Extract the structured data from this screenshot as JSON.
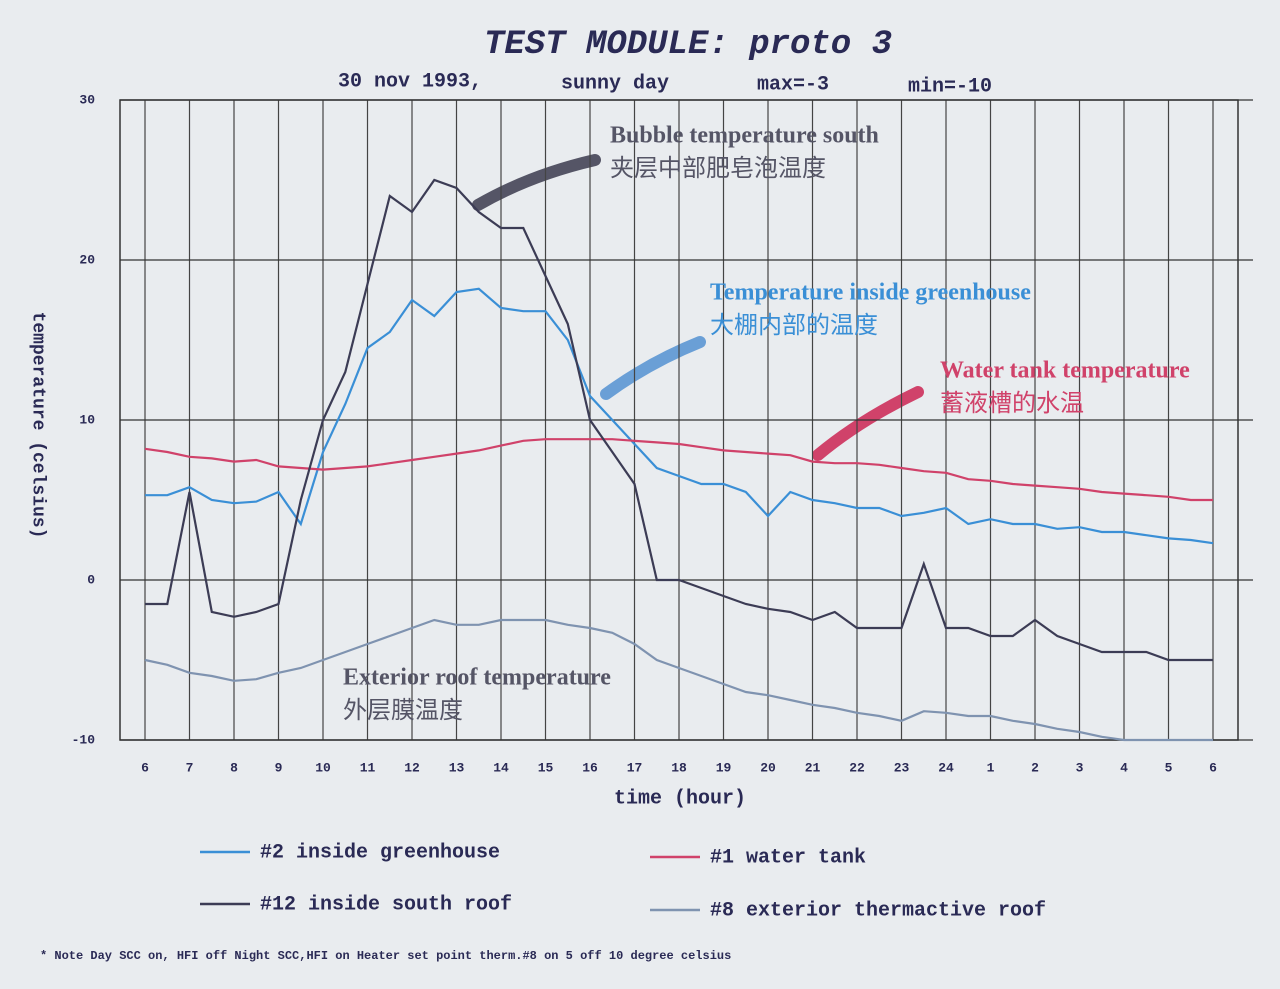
{
  "chart_data": {
    "type": "line",
    "title": "TEST MODULE: proto 3",
    "subtitle": [
      "30 nov 1993,",
      "sunny day",
      "max=-3",
      "min=-10"
    ],
    "y_label": "temperature (celsius)",
    "x_label": "time (hour)",
    "categories": [
      "6",
      null,
      "7",
      null,
      "8",
      null,
      "9",
      null,
      "10",
      null,
      "11",
      null,
      "12",
      null,
      "13",
      null,
      "14",
      null,
      "15",
      null,
      "16",
      null,
      "17",
      null,
      "18",
      null,
      "19",
      null,
      "20",
      null,
      "21",
      null,
      "22",
      null,
      "23",
      null,
      "24",
      null,
      "1",
      null,
      "2",
      null,
      "3",
      null,
      "4",
      null,
      "5",
      null,
      "6"
    ],
    "ylim": [
      -10,
      30
    ],
    "yticks": [
      -10,
      0,
      10,
      20,
      30
    ],
    "grid": true,
    "series": [
      {
        "name": "#2 inside greenhouse",
        "color": "#3a8fd6",
        "values": [
          5.3,
          5.3,
          5.8,
          5,
          4.8,
          4.9,
          5.5,
          3.5,
          8,
          11,
          14.5,
          15.5,
          17.5,
          16.5,
          18,
          18.2,
          17,
          16.8,
          16.8,
          15,
          11.5,
          10,
          8.5,
          7,
          6.5,
          6,
          6,
          5.5,
          4,
          5.5,
          5,
          4.8,
          4.5,
          4.5,
          4,
          4.2,
          4.5,
          3.5,
          3.8,
          3.5,
          3.5,
          3.2,
          3.3,
          3,
          3,
          2.8,
          2.6,
          2.5,
          2.3
        ]
      },
      {
        "name": "#1 water tank",
        "color": "#d0426a",
        "values": [
          8.2,
          8,
          7.7,
          7.6,
          7.4,
          7.5,
          7.1,
          7,
          6.9,
          7,
          7.1,
          7.3,
          7.5,
          7.7,
          7.9,
          8.1,
          8.4,
          8.7,
          8.8,
          8.8,
          8.8,
          8.8,
          8.7,
          8.6,
          8.5,
          8.3,
          8.1,
          8,
          7.9,
          7.8,
          7.4,
          7.3,
          7.3,
          7.2,
          7,
          6.8,
          6.7,
          6.3,
          6.2,
          6,
          5.9,
          5.8,
          5.7,
          5.5,
          5.4,
          5.3,
          5.2,
          5,
          5
        ]
      },
      {
        "name": "#12 inside south roof",
        "color": "#3c3c55",
        "values": [
          -1.5,
          -1.5,
          5.5,
          -2,
          -2.3,
          -2,
          -1.5,
          5,
          10,
          13,
          18.5,
          24,
          23,
          25,
          24.5,
          23,
          22,
          22,
          19,
          16,
          10,
          8,
          6,
          0,
          0,
          -0.5,
          -1,
          -1.5,
          -1.8,
          -2,
          -2.5,
          -2,
          -3,
          -3,
          -3,
          1,
          -3,
          -3,
          -3.5,
          -3.5,
          -2.5,
          -3.5,
          -4,
          -4.5,
          -4.5,
          -4.5,
          -5,
          -5,
          -5
        ]
      },
      {
        "name": "#8 exterior thermactive roof",
        "color": "#7f93b0",
        "values": [
          -5,
          -5.3,
          -5.8,
          -6,
          -6.3,
          -6.2,
          -5.8,
          -5.5,
          -5,
          -4.5,
          -4,
          -3.5,
          -3,
          -2.5,
          -2.8,
          -2.8,
          -2.5,
          -2.5,
          -2.5,
          -2.8,
          -3,
          -3.3,
          -4,
          -5,
          -5.5,
          -6,
          -6.5,
          -7,
          -7.2,
          -7.5,
          -7.8,
          -8,
          -8.3,
          -8.5,
          -8.8,
          -8.2,
          -8.3,
          -8.5,
          -8.5,
          -8.8,
          -9,
          -9.3,
          -9.5,
          -9.8,
          -10,
          -10,
          -10,
          -10,
          -10
        ]
      }
    ],
    "annotations": [
      {
        "text": "Bubble temperature south",
        "subtext": "夹层中部肥皂泡温度",
        "color": "#555566"
      },
      {
        "text": "Temperature inside greenhouse",
        "subtext": "大棚内部的温度",
        "color": "#3a8fd6"
      },
      {
        "text": "Water tank temperature",
        "subtext": "蓄液槽的水温",
        "color": "#d0426a"
      },
      {
        "text": "Exterior roof temperature",
        "subtext": "外层膜温度",
        "color": "#555566"
      }
    ],
    "note": "* Note  Day SCC on, HFI off    Night SCC,HFI on     Heater set point therm.#8 on 5 off 10 degree celsius"
  }
}
